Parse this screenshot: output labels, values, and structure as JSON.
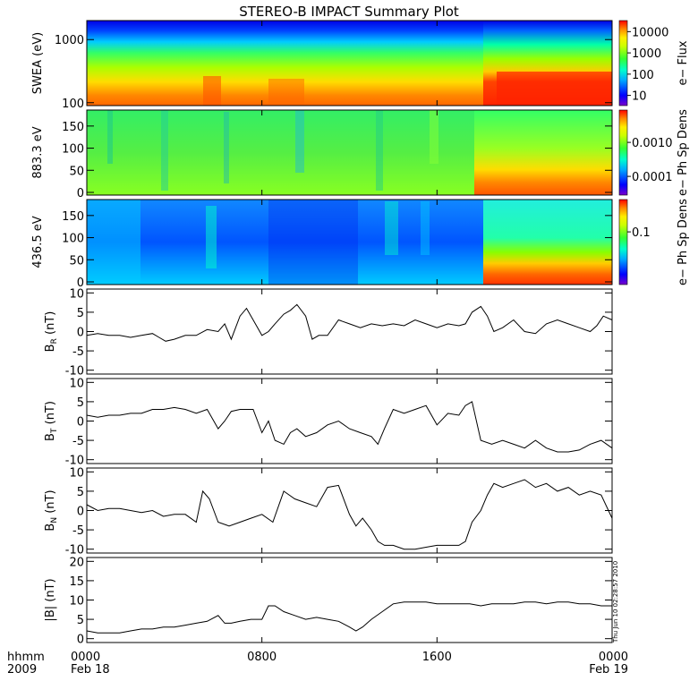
{
  "title": "STEREO-B IMPACT Summary Plot",
  "timestamp": "Thu Jun 10 02:28:57 2010",
  "x_axis": {
    "label_top": "hhmm",
    "label_bottom": "2009",
    "ticks": [
      {
        "hhmm": "0000",
        "date": "Feb 18",
        "hour": 0
      },
      {
        "hhmm": "0800",
        "date": "",
        "hour": 8
      },
      {
        "hhmm": "1600",
        "date": "",
        "hour": 16
      },
      {
        "hhmm": "0000",
        "date": "Feb 19",
        "hour": 24
      }
    ],
    "range_hours": [
      0,
      24
    ]
  },
  "chart_data": [
    {
      "type": "heatmap",
      "id": "swea",
      "ylabel": "SWEA (eV)",
      "yscale": "log",
      "yticks": [
        {
          "value": 100,
          "label": "100"
        },
        {
          "value": 1000,
          "label": "1000"
        }
      ],
      "colorbar_label": "e− Flux",
      "colorbar_ticks": [
        {
          "label": "10",
          "frac": 0.12
        },
        {
          "label": "100",
          "frac": 0.37
        },
        {
          "label": "1000",
          "frac": 0.62
        },
        {
          "label": "10000",
          "frac": 0.87
        }
      ],
      "description_segments": [
        {
          "x": [
            0,
            19
          ],
          "level": "low flux at high energy, orange-red near 100 eV"
        },
        {
          "x": [
            18,
            24
          ],
          "level": "elevated: red band widens near 100-250 eV"
        }
      ]
    },
    {
      "type": "heatmap",
      "id": "pad883",
      "ylabel": "883.3 eV",
      "yticks": [
        {
          "value": 0,
          "label": "0"
        },
        {
          "value": 50,
          "label": "50"
        },
        {
          "value": 100,
          "label": "100"
        },
        {
          "value": 150,
          "label": "150"
        }
      ],
      "ylim": [
        0,
        180
      ],
      "colorbar_label": "e− Ph Sp Dens",
      "colorbar_ticks": [
        {
          "label": "0.0001",
          "frac": 0.22
        },
        {
          "label": "0.0010",
          "frac": 0.62
        }
      ]
    },
    {
      "type": "heatmap",
      "id": "pad436",
      "ylabel": "436.5 eV",
      "yticks": [
        {
          "value": 0,
          "label": "0"
        },
        {
          "value": 50,
          "label": "50"
        },
        {
          "value": 100,
          "label": "100"
        },
        {
          "value": 150,
          "label": "150"
        }
      ],
      "ylim": [
        0,
        180
      ],
      "colorbar_label": "e− Ph Sp Dens",
      "colorbar_ticks": [
        {
          "label": "0.1",
          "frac": 0.62
        }
      ]
    },
    {
      "type": "line",
      "id": "br",
      "ylabel_main": "B",
      "ylabel_sub": "R",
      "ylabel_unit": " (nT)",
      "ylim": [
        -11,
        11
      ],
      "yticks": [
        -10,
        -5,
        0,
        5,
        10
      ],
      "x_hours": [
        0,
        0.5,
        1,
        1.5,
        2,
        2.5,
        3,
        3.3,
        3.6,
        4,
        4.5,
        5,
        5.5,
        6,
        6.3,
        6.6,
        7,
        7.3,
        7.6,
        8,
        8.3,
        8.6,
        9,
        9.3,
        9.6,
        10,
        10.3,
        10.6,
        11,
        11.5,
        12,
        12.5,
        13,
        13.5,
        14,
        14.5,
        15,
        15.5,
        16,
        16.5,
        17,
        17.3,
        17.6,
        18,
        18.3,
        18.6,
        19,
        19.5,
        20,
        20.5,
        21,
        21.5,
        22,
        22.5,
        23,
        23.3,
        23.6,
        24
      ],
      "values": [
        -1,
        -0.5,
        -1,
        -1,
        -1.5,
        -1,
        -0.5,
        -1.5,
        -2.5,
        -2,
        -1,
        -1,
        0.5,
        0,
        2,
        -2,
        4,
        6,
        3,
        -1,
        0,
        2,
        4.5,
        5.5,
        7,
        4,
        -2,
        -1,
        -1,
        3,
        2,
        1,
        2,
        1.5,
        2,
        1.5,
        3,
        2,
        1,
        2,
        1.5,
        2,
        5,
        6.5,
        4,
        0,
        1,
        3,
        0,
        -0.5,
        2,
        3,
        2,
        1,
        0,
        1.5,
        4,
        3
      ]
    },
    {
      "type": "line",
      "id": "bt",
      "ylabel_main": "B",
      "ylabel_sub": "T",
      "ylabel_unit": " (nT)",
      "ylim": [
        -11,
        11
      ],
      "yticks": [
        -10,
        -5,
        0,
        5,
        10
      ],
      "x_hours": [
        0,
        0.5,
        1,
        1.5,
        2,
        2.5,
        3,
        3.5,
        4,
        4.5,
        5,
        5.5,
        6,
        6.3,
        6.6,
        7,
        7.3,
        7.6,
        8,
        8.3,
        8.6,
        9,
        9.3,
        9.6,
        10,
        10.5,
        11,
        11.5,
        12,
        12.5,
        13,
        13.3,
        13.6,
        14,
        14.5,
        15,
        15.5,
        16,
        16.5,
        17,
        17.3,
        17.6,
        18,
        18.5,
        19,
        19.5,
        20,
        20.5,
        21,
        21.5,
        22,
        22.5,
        23,
        23.5,
        24
      ],
      "values": [
        1.5,
        1,
        1.5,
        1.5,
        2,
        2,
        3,
        3,
        3.5,
        3,
        2,
        3,
        -2,
        0,
        2.5,
        3,
        3,
        3,
        -3,
        0,
        -5,
        -6,
        -3,
        -2,
        -4,
        -3,
        -1,
        0,
        -2,
        -3,
        -4,
        -6,
        -2,
        3,
        2,
        3,
        4,
        -1,
        2,
        1.5,
        4,
        5,
        -5,
        -6,
        -5,
        -6,
        -7,
        -5,
        -7,
        -8,
        -8,
        -7.5,
        -6,
        -5,
        -7
      ]
    },
    {
      "type": "line",
      "id": "bn",
      "ylabel_main": "B",
      "ylabel_sub": "N",
      "ylabel_unit": " (nT)",
      "ylim": [
        -11,
        11
      ],
      "yticks": [
        -10,
        -5,
        0,
        5,
        10
      ],
      "x_hours": [
        0,
        0.5,
        1,
        1.5,
        2,
        2.5,
        3,
        3.5,
        4,
        4.5,
        5,
        5.3,
        5.6,
        6,
        6.5,
        7,
        7.5,
        8,
        8.5,
        9,
        9.5,
        10,
        10.5,
        11,
        11.5,
        12,
        12.3,
        12.6,
        13,
        13.3,
        13.6,
        14,
        14.5,
        15,
        15.5,
        16,
        16.5,
        17,
        17.3,
        17.6,
        18,
        18.3,
        18.6,
        19,
        19.5,
        20,
        20.5,
        21,
        21.5,
        22,
        22.5,
        23,
        23.5,
        24
      ],
      "values": [
        1.5,
        0,
        0.5,
        0.5,
        0,
        -0.5,
        0,
        -1.5,
        -1,
        -1,
        -3,
        5,
        3,
        -3,
        -4,
        -3,
        -2,
        -1,
        -3,
        5,
        3,
        2,
        1,
        6,
        6.5,
        -1,
        -4,
        -2,
        -5,
        -8,
        -9,
        -9,
        -10,
        -10,
        -9.5,
        -9,
        -9,
        -9,
        -8,
        -3,
        0,
        4,
        7,
        6,
        7,
        8,
        6,
        7,
        5,
        6,
        4,
        5,
        4,
        -2
      ]
    },
    {
      "type": "line",
      "id": "bmag",
      "ylabel_main": "|B| (nT)",
      "ylim": [
        -1,
        21
      ],
      "yticks": [
        0,
        5,
        10,
        15,
        20
      ],
      "x_hours": [
        0,
        0.5,
        1,
        1.5,
        2,
        2.5,
        3,
        3.5,
        4,
        4.5,
        5,
        5.5,
        6,
        6.3,
        6.6,
        7,
        7.5,
        8,
        8.3,
        8.6,
        9,
        9.5,
        10,
        10.5,
        11,
        11.5,
        12,
        12.3,
        12.6,
        13,
        13.5,
        14,
        14.5,
        15,
        15.5,
        16,
        16.5,
        17,
        17.5,
        18,
        18.5,
        19,
        19.5,
        20,
        20.5,
        21,
        21.5,
        22,
        22.5,
        23,
        23.5,
        24
      ],
      "values": [
        2,
        1.5,
        1.5,
        1.5,
        2,
        2.5,
        2.5,
        3,
        3,
        3.5,
        4,
        4.5,
        6,
        4,
        4,
        4.5,
        5,
        5,
        8.5,
        8.5,
        7,
        6,
        5,
        5.5,
        5,
        4.5,
        3,
        2,
        3,
        5,
        7,
        9,
        9.5,
        9.5,
        9.5,
        9,
        9,
        9,
        9,
        8.5,
        9,
        9,
        9,
        9.5,
        9.5,
        9,
        9.5,
        9.5,
        9,
        9,
        8.5,
        8.5
      ]
    }
  ]
}
